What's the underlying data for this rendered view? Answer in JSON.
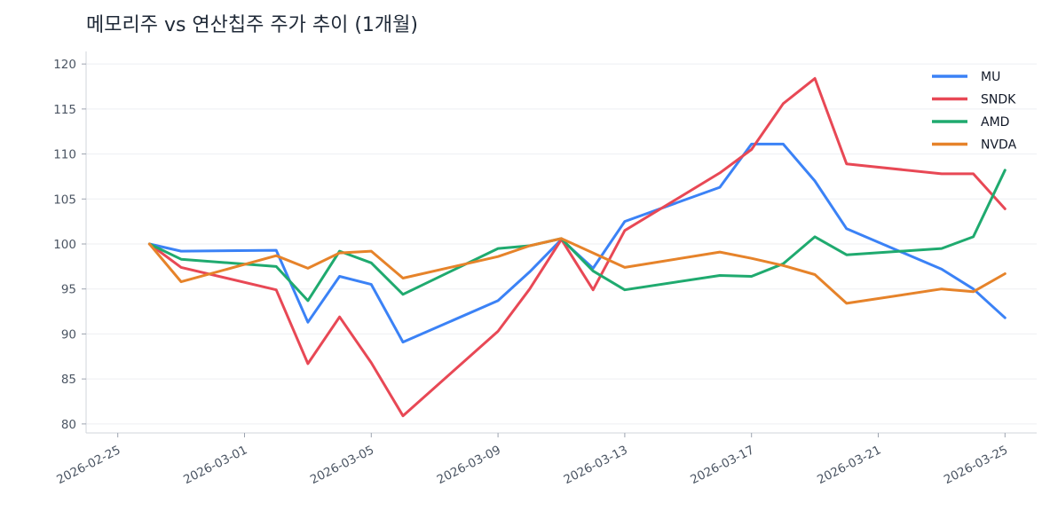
{
  "chart_data": {
    "type": "line",
    "title": "메모리주 vs 연산칩주 주가 추이 (1개월)",
    "xlabel": "",
    "ylabel": "",
    "ylim": [
      79,
      121
    ],
    "xlim": [
      "2026-02-24",
      "2026-03-26"
    ],
    "y_ticks": [
      80,
      85,
      90,
      95,
      100,
      105,
      110,
      115,
      120
    ],
    "x_ticks": [
      "2026-02-25",
      "2026-03-01",
      "2026-03-05",
      "2026-03-09",
      "2026-03-13",
      "2026-03-17",
      "2026-03-21",
      "2026-03-25"
    ],
    "grid": "horizontal",
    "legend": "top-right",
    "x": [
      "2026-02-26",
      "2026-02-27",
      "2026-03-02",
      "2026-03-03",
      "2026-03-04",
      "2026-03-05",
      "2026-03-06",
      "2026-03-09",
      "2026-03-10",
      "2026-03-11",
      "2026-03-12",
      "2026-03-13",
      "2026-03-16",
      "2026-03-17",
      "2026-03-18",
      "2026-03-19",
      "2026-03-20",
      "2026-03-23",
      "2026-03-24",
      "2026-03-25"
    ],
    "series": [
      {
        "name": "MU",
        "color": "#3b82f6",
        "values": [
          100.0,
          99.2,
          99.3,
          91.3,
          96.4,
          95.5,
          89.1,
          93.7,
          96.9,
          100.5,
          97.3,
          102.5,
          106.3,
          111.1,
          111.1,
          107.0,
          101.7,
          97.2,
          95.0,
          91.8
        ]
      },
      {
        "name": "SNDK",
        "color": "#e84855",
        "values": [
          100.0,
          97.4,
          94.9,
          86.7,
          91.9,
          86.8,
          80.9,
          90.3,
          95.0,
          100.5,
          94.9,
          101.5,
          107.9,
          110.5,
          115.6,
          118.4,
          108.9,
          107.8,
          107.8,
          103.9
        ]
      },
      {
        "name": "AMD",
        "color": "#1faa6f",
        "values": [
          100.0,
          98.3,
          97.5,
          93.7,
          99.2,
          97.9,
          94.4,
          99.5,
          99.8,
          100.6,
          97.0,
          94.9,
          96.5,
          96.4,
          97.8,
          100.8,
          98.8,
          99.5,
          100.8,
          108.2
        ]
      },
      {
        "name": "NVDA",
        "color": "#e6832a",
        "values": [
          100.0,
          95.8,
          98.7,
          97.3,
          99.0,
          99.2,
          96.2,
          98.6,
          99.8,
          100.6,
          99.0,
          97.4,
          99.1,
          98.4,
          97.6,
          96.6,
          93.4,
          95.0,
          94.7,
          96.7
        ]
      }
    ]
  }
}
